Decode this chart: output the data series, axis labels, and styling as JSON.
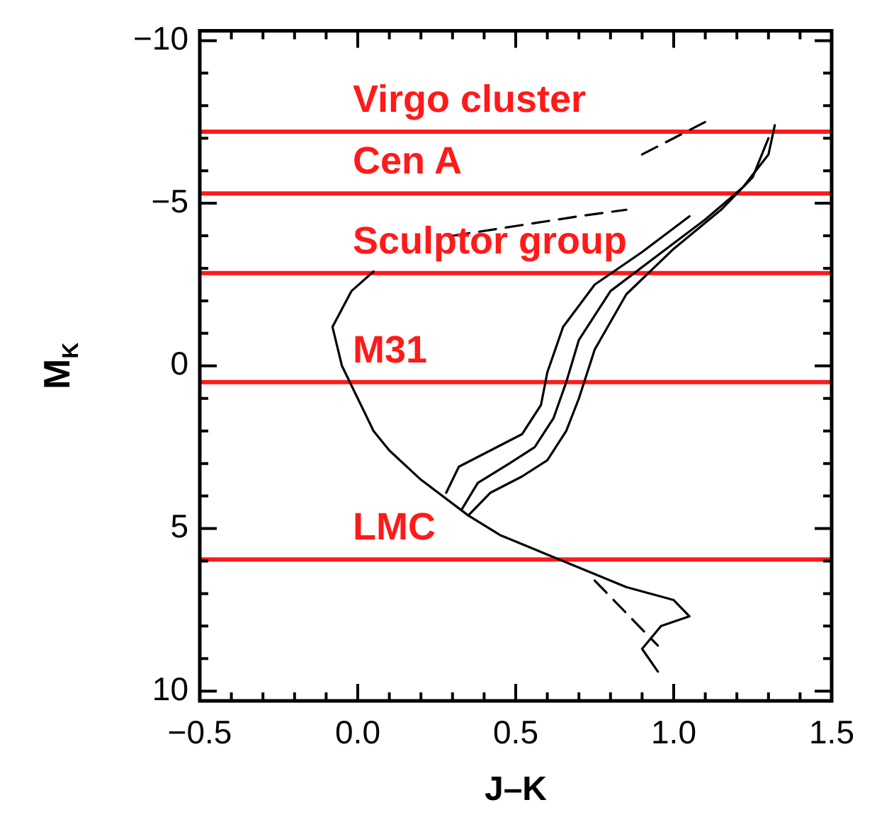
{
  "chart_data": {
    "type": "line",
    "xlabel": "J–K",
    "ylabel": "M$_{K}$",
    "xlim": [
      -0.5,
      1.5
    ],
    "ylim": [
      10.3,
      -10.3
    ],
    "xticks": [
      {
        "value": -0.5,
        "label": "−0.5"
      },
      {
        "value": -0.4,
        "label": null
      },
      {
        "value": -0.3,
        "label": null
      },
      {
        "value": -0.2,
        "label": null
      },
      {
        "value": -0.1,
        "label": null
      },
      {
        "value": 0,
        "label": "0.0"
      },
      {
        "value": 0.1,
        "label": null
      },
      {
        "value": 0.2,
        "label": null
      },
      {
        "value": 0.3,
        "label": null
      },
      {
        "value": 0.4,
        "label": null
      },
      {
        "value": 0.5,
        "label": "0.5"
      },
      {
        "value": 0.6,
        "label": null
      },
      {
        "value": 0.7,
        "label": null
      },
      {
        "value": 0.8,
        "label": null
      },
      {
        "value": 0.9,
        "label": null
      },
      {
        "value": 1,
        "label": "1.0"
      },
      {
        "value": 1.1,
        "label": null
      },
      {
        "value": 1.2,
        "label": null
      },
      {
        "value": 1.3,
        "label": null
      },
      {
        "value": 1.4,
        "label": null
      },
      {
        "value": 1.5,
        "label": "1.5"
      }
    ],
    "yticks": [
      {
        "value": -10,
        "label": "−10"
      },
      {
        "value": -9,
        "label": null
      },
      {
        "value": -8,
        "label": null
      },
      {
        "value": -7,
        "label": null
      },
      {
        "value": -6,
        "label": null
      },
      {
        "value": -5,
        "label": "−5"
      },
      {
        "value": -4,
        "label": null
      },
      {
        "value": -3,
        "label": null
      },
      {
        "value": -2,
        "label": null
      },
      {
        "value": -1,
        "label": null
      },
      {
        "value": 0,
        "label": "0"
      },
      {
        "value": 1,
        "label": null
      },
      {
        "value": 2,
        "label": null
      },
      {
        "value": 3,
        "label": null
      },
      {
        "value": 4,
        "label": null
      },
      {
        "value": 5,
        "label": "5"
      },
      {
        "value": 6,
        "label": null
      },
      {
        "value": 7,
        "label": null
      },
      {
        "value": 8,
        "label": null
      },
      {
        "value": 9,
        "label": null
      },
      {
        "value": 10,
        "label": "10"
      }
    ],
    "grid": false,
    "legend": false,
    "marker": "none",
    "line_style": "solid",
    "series": [
      {
        "color": "#000000",
        "x": [
          0.95,
          0.9,
          0.96,
          1.05,
          1.0,
          0.85,
          0.65,
          0.45,
          0.35,
          0.42,
          0.52,
          0.6,
          0.66,
          0.7,
          0.75,
          0.85,
          1.0,
          1.15,
          1.25,
          1.3
        ],
        "values": [
          9.4,
          8.7,
          8.0,
          7.7,
          7.2,
          6.8,
          6.0,
          5.2,
          4.6,
          3.9,
          3.4,
          2.9,
          2.0,
          1.0,
          -0.5,
          -2.2,
          -3.6,
          -4.8,
          -5.8,
          -7.0
        ]
      },
      {
        "color": "#000000",
        "x": [
          0.33,
          0.38,
          0.48,
          0.56,
          0.62,
          0.66,
          0.7,
          0.8,
          0.95,
          1.1,
          1.22,
          1.3,
          1.32
        ],
        "values": [
          4.4,
          3.6,
          3.0,
          2.5,
          1.6,
          0.5,
          -0.8,
          -2.3,
          -3.4,
          -4.5,
          -5.5,
          -6.5,
          -7.4
        ]
      },
      {
        "color": "#000000",
        "x": [
          0.28,
          0.32,
          0.42,
          0.52,
          0.58,
          0.6,
          0.65,
          0.75,
          0.9,
          1.05
        ],
        "values": [
          3.9,
          3.1,
          2.6,
          2.1,
          1.2,
          0.2,
          -1.2,
          -2.5,
          -3.5,
          -4.6
        ]
      },
      {
        "color": "#000000",
        "x": [
          0.35,
          0.2,
          0.1,
          0.05,
          0.0,
          -0.05,
          -0.08,
          -0.02,
          0.05
        ],
        "values": [
          4.6,
          3.5,
          2.6,
          2.0,
          1.0,
          0.0,
          -1.2,
          -2.3,
          -2.9
        ]
      },
      {
        "color": "#000000",
        "line_style": "dashed",
        "x": [
          0.75,
          0.85,
          0.95
        ],
        "values": [
          6.6,
          7.6,
          8.6
        ]
      },
      {
        "color": "#000000",
        "line_style": "dashed",
        "x": [
          0.3,
          0.5,
          0.7,
          0.85
        ],
        "values": [
          -4.0,
          -4.3,
          -4.6,
          -4.8
        ]
      },
      {
        "color": "#000000",
        "line_style": "dashed",
        "x": [
          0.9,
          1.0,
          1.1
        ],
        "values": [
          -6.5,
          -7.0,
          -7.5
        ]
      }
    ],
    "ref_lines": [
      {
        "axis": "y",
        "value": -7.2,
        "label": "Virgo cluster",
        "color": "#ff1a1a"
      },
      {
        "axis": "y",
        "value": -5.3,
        "label": "Cen A",
        "color": "#ff1a1a"
      },
      {
        "axis": "y",
        "value": -2.85,
        "label": "Sculptor group",
        "color": "#ff1a1a"
      },
      {
        "axis": "y",
        "value": 0.5,
        "label": "M31",
        "color": "#ff1a1a"
      },
      {
        "axis": "y",
        "value": 5.95,
        "label": "LMC",
        "color": "#ff1a1a"
      }
    ]
  }
}
